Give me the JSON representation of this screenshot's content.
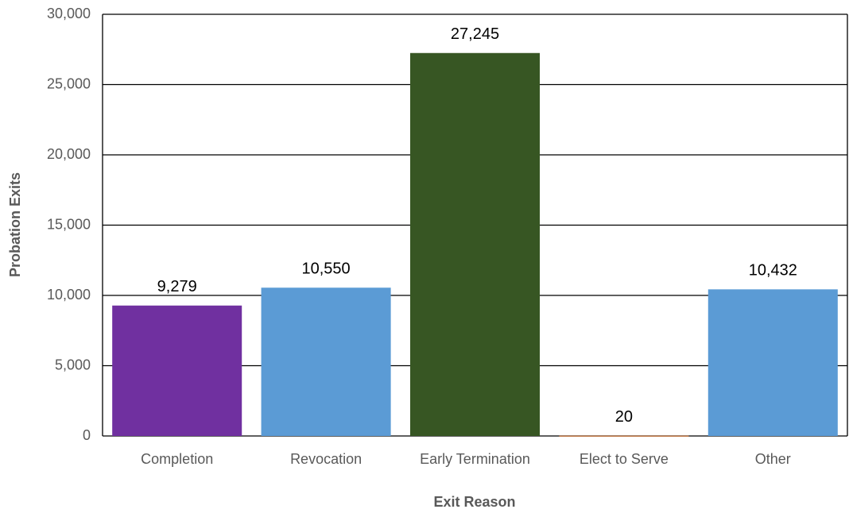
{
  "chart_data": {
    "type": "bar",
    "x_label": "Exit Reason",
    "y_label": "Probation Exits",
    "categories": [
      "Completion",
      "Revocation",
      "Early Termination",
      "Elect to Serve",
      "Other"
    ],
    "values": [
      9279,
      10550,
      27245,
      20,
      10432
    ],
    "value_labels": [
      "9,279",
      "10,550",
      "27,245",
      "20",
      "10,432"
    ],
    "colors": [
      "#7030a0",
      "#5b9bd5",
      "#375623",
      "#c55a11",
      "#5b9bd5"
    ],
    "ylim": [
      0,
      30000
    ],
    "yticks": [
      0,
      {
        "value": 5000,
        "label": "5,000"
      },
      {
        "value": 10000,
        "label": "10,000"
      },
      {
        "value": 15000,
        "label": "15,000"
      },
      {
        "value": 20000,
        "label": "20,000"
      },
      {
        "value": 25000,
        "label": "25,000"
      },
      {
        "value": 30000,
        "label": "30,000"
      }
    ],
    "grid": true
  }
}
